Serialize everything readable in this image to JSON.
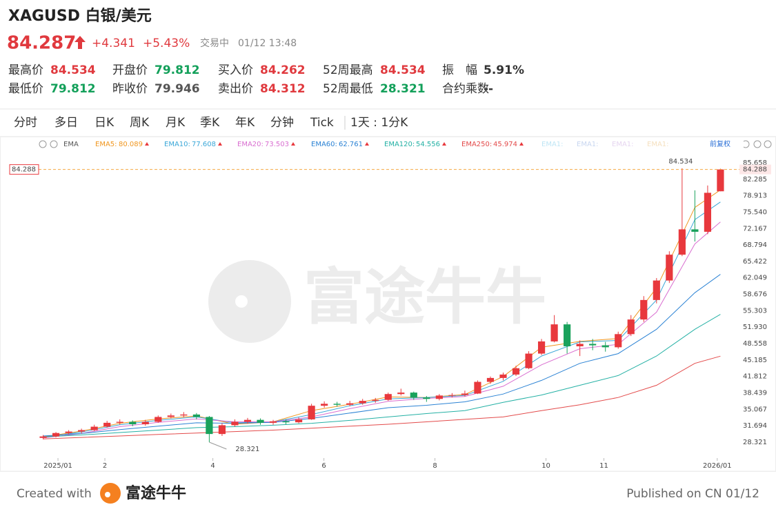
{
  "header": {
    "symbol_name": "XAGUSD 白银/美元",
    "price": 84.287,
    "change": "+4.341",
    "change_pct": "+5.43%",
    "status": "交易中",
    "time": "01/12 13:48"
  },
  "stats": [
    [
      {
        "label": "最高价",
        "value": 84.534,
        "color": "#e0393e"
      },
      {
        "label": "开盘价",
        "value": 79.812,
        "color": "#13a05a"
      },
      {
        "label": "买入价",
        "value": 84.262,
        "color": "#e0393e"
      },
      {
        "label": "52周最高",
        "value": 84.534,
        "color": "#e0393e"
      },
      {
        "label": "振　幅",
        "value": "5.91%",
        "color": "#333333"
      }
    ],
    [
      {
        "label": "最低价",
        "value": 79.812,
        "color": "#13a05a"
      },
      {
        "label": "昨收价",
        "value": 79.946,
        "color": "#555555"
      },
      {
        "label": "卖出价",
        "value": 84.312,
        "color": "#e0393e"
      },
      {
        "label": "52周最低",
        "value": 28.321,
        "color": "#13a05a"
      },
      {
        "label": "合约乘数",
        "value": "--",
        "color": "#333333"
      }
    ]
  ],
  "tabs": {
    "items": [
      "分时",
      "多日",
      "日K",
      "周K",
      "月K",
      "季K",
      "年K",
      "分钟",
      "Tick"
    ],
    "active": 2,
    "interval": "1天 : 1分K"
  },
  "chart_data": {
    "type": "candlestick",
    "indicator": "EMA",
    "adjust": "前复权",
    "up_color": "#e8383d",
    "down_color": "#1aa25c",
    "ylim": [
      25.63,
      87.07
    ],
    "yticks": [
      85.658,
      82.285,
      78.913,
      {
        "value": 75.54,
        "label": "75.540"
      },
      72.167,
      68.794,
      65.422,
      62.049,
      58.676,
      55.303,
      {
        "value": 51.93,
        "label": "51.930"
      },
      48.558,
      45.185,
      41.812,
      38.439,
      35.067,
      31.694,
      28.321
    ],
    "xlim": [
      -0.3,
      53.3
    ],
    "xticks": [
      {
        "value": 1.16,
        "label": "2025/01"
      },
      {
        "value": 4.83,
        "label": "2"
      },
      {
        "value": 13.28,
        "label": "4"
      },
      {
        "value": 21.97,
        "label": "6"
      },
      {
        "value": 30.66,
        "label": "8"
      },
      {
        "value": 39.35,
        "label": "10"
      },
      {
        "value": 43.88,
        "label": "11"
      },
      {
        "value": 52.75,
        "label": "2026/01"
      }
    ],
    "last_price": 84.288,
    "annotations": [
      84.534,
      28.321
    ],
    "ohlc": [
      [
        29.2,
        29.8,
        28.9,
        29.5
      ],
      [
        29.5,
        30.4,
        29.3,
        30.2
      ],
      [
        30.2,
        30.8,
        29.9,
        30.5
      ],
      [
        30.5,
        31.1,
        30.1,
        30.8
      ],
      [
        30.8,
        31.9,
        30.6,
        31.5
      ],
      [
        31.5,
        32.7,
        31.3,
        32.3
      ],
      [
        32.3,
        33.0,
        31.9,
        32.5
      ],
      [
        32.5,
        32.8,
        31.6,
        32.0
      ],
      [
        32.0,
        32.9,
        31.7,
        32.5
      ],
      [
        32.5,
        33.8,
        32.3,
        33.5
      ],
      [
        33.5,
        34.2,
        33.2,
        33.8
      ],
      [
        33.8,
        34.5,
        33.4,
        34.0
      ],
      [
        34.0,
        34.3,
        33.0,
        33.5
      ],
      [
        33.5,
        33.7,
        28.321,
        30.0
      ],
      [
        30.0,
        32.2,
        29.6,
        31.8
      ],
      [
        31.8,
        33.0,
        31.5,
        32.5
      ],
      [
        32.5,
        33.3,
        32.1,
        32.9
      ],
      [
        32.9,
        33.2,
        31.9,
        32.3
      ],
      [
        32.3,
        32.9,
        31.9,
        32.6
      ],
      [
        32.6,
        33.0,
        32.0,
        32.4
      ],
      [
        32.4,
        33.4,
        32.2,
        33.0
      ],
      [
        33.0,
        36.2,
        32.9,
        35.8
      ],
      [
        35.8,
        36.7,
        35.4,
        36.2
      ],
      [
        36.2,
        36.6,
        35.6,
        36.0
      ],
      [
        36.0,
        36.8,
        35.7,
        36.3
      ],
      [
        36.3,
        37.2,
        36.0,
        36.8
      ],
      [
        36.8,
        37.4,
        36.4,
        37.0
      ],
      [
        37.0,
        38.5,
        36.8,
        38.2
      ],
      [
        38.2,
        39.3,
        37.9,
        38.5
      ],
      [
        38.5,
        38.7,
        37.0,
        37.5
      ],
      [
        37.5,
        37.8,
        36.6,
        37.2
      ],
      [
        37.2,
        38.2,
        36.9,
        37.9
      ],
      [
        37.9,
        38.4,
        37.5,
        38.0
      ],
      [
        38.0,
        38.9,
        37.7,
        38.3
      ],
      [
        38.3,
        41.0,
        38.2,
        40.7
      ],
      [
        40.7,
        41.8,
        40.3,
        41.5
      ],
      [
        41.5,
        42.6,
        41.0,
        42.2
      ],
      [
        42.2,
        44.0,
        41.9,
        43.5
      ],
      [
        43.5,
        47.0,
        43.3,
        46.5
      ],
      [
        46.5,
        49.5,
        46.2,
        49.0
      ],
      [
        49.0,
        54.4,
        48.8,
        52.5
      ],
      [
        52.5,
        53.0,
        46.5,
        48.0
      ],
      [
        48.0,
        49.2,
        46.0,
        48.5
      ],
      [
        48.5,
        49.5,
        47.2,
        48.2
      ],
      [
        48.2,
        48.9,
        46.9,
        47.8
      ],
      [
        47.8,
        51.0,
        47.5,
        50.5
      ],
      [
        50.5,
        54.4,
        50.1,
        53.5
      ],
      [
        53.5,
        58.3,
        53.0,
        57.5
      ],
      [
        57.5,
        62.0,
        56.8,
        61.5
      ],
      [
        61.5,
        67.5,
        61.0,
        66.8
      ],
      [
        66.8,
        84.534,
        66.5,
        72.0
      ],
      [
        72.0,
        80.0,
        69.5,
        71.5
      ],
      [
        71.5,
        81.0,
        71.0,
        79.5
      ],
      [
        79.812,
        84.45,
        79.812,
        84.287
      ]
    ],
    "ema_x": [
      0,
      3,
      6,
      9,
      12,
      15,
      18,
      21,
      24,
      27,
      30,
      33,
      36,
      39,
      42,
      45,
      48,
      51,
      53
    ],
    "series": [
      {
        "name": "EMA5:",
        "color": "#f0961e",
        "values": [
          29.4,
          30.6,
          32.2,
          33.1,
          33.7,
          32.0,
          32.5,
          34.8,
          36.1,
          37.6,
          37.5,
          38.1,
          41.8,
          47.8,
          49.0,
          49.6,
          60.0,
          76.5,
          80.089
        ]
      },
      {
        "name": "EMA10:",
        "color": "#3aa7d8",
        "values": [
          29.3,
          30.4,
          31.9,
          32.8,
          33.5,
          32.3,
          32.5,
          34.0,
          35.8,
          37.2,
          37.5,
          37.9,
          40.8,
          46.0,
          48.9,
          49.2,
          57.5,
          74.0,
          77.608
        ]
      },
      {
        "name": "EMA20:",
        "color": "#d96ed0",
        "values": [
          29.2,
          30.1,
          31.5,
          32.4,
          33.1,
          32.5,
          32.5,
          33.5,
          35.2,
          36.7,
          37.3,
          37.7,
          39.8,
          44.2,
          47.5,
          48.4,
          55.0,
          69.0,
          73.503
        ]
      },
      {
        "name": "EMA60:",
        "color": "#2a82d4",
        "values": [
          29.6,
          30.1,
          30.9,
          31.6,
          32.3,
          32.2,
          32.4,
          33.2,
          34.3,
          35.4,
          35.9,
          36.6,
          38.2,
          41.0,
          44.5,
          46.5,
          51.5,
          59.0,
          62.761
        ]
      },
      {
        "name": "EMA120:",
        "color": "#23b0a4",
        "values": [
          29.4,
          29.8,
          30.3,
          30.8,
          31.3,
          31.5,
          31.8,
          32.2,
          32.8,
          33.5,
          34.2,
          34.8,
          36.5,
          38.0,
          40.0,
          42.0,
          46.0,
          51.5,
          54.556
        ]
      },
      {
        "name": "EMA250:",
        "color": "#e34a4a",
        "values": [
          29.0,
          29.3,
          29.6,
          29.9,
          30.2,
          30.5,
          30.8,
          31.2,
          31.6,
          32.0,
          32.5,
          33.0,
          33.5,
          34.8,
          36.0,
          37.5,
          40.0,
          44.5,
          45.974
        ]
      }
    ],
    "ghost_legend": [
      {
        "name": "EMA1:",
        "color": "#bfe6f5"
      },
      {
        "name": "EMA1:",
        "color": "#c8d6f0"
      },
      {
        "name": "EMA1:",
        "color": "#e6d5f0"
      },
      {
        "name": "EMA1:",
        "color": "#f5e0bf"
      }
    ],
    "watermark": "富途牛牛"
  },
  "footer": {
    "created": "Created with",
    "brand": "富途牛牛",
    "published": "Published on CN 01/12"
  }
}
